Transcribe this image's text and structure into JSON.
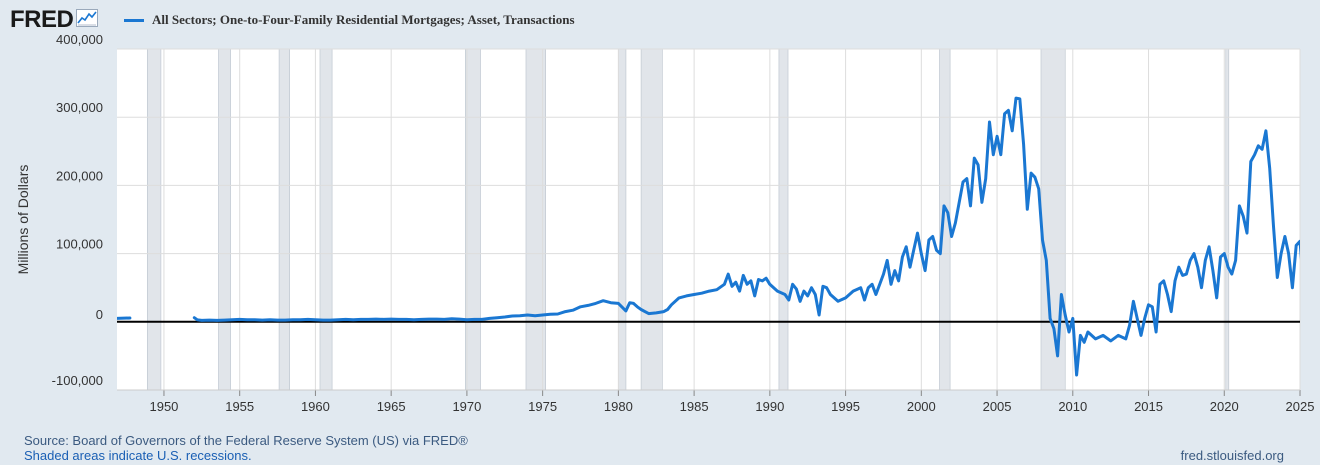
{
  "header": {
    "logo_text": "FRED",
    "logo_icon": "trend-line-icon"
  },
  "colors": {
    "background": "#e1e9f0",
    "plot_background": "#ffffff",
    "series_line": "#1a77d2",
    "recession_shade": "#e1e5ea",
    "zero_line": "#000000",
    "grid": "#dddddd"
  },
  "chart_data": {
    "type": "line",
    "title": "",
    "xlabel": "",
    "ylabel": "Millions of Dollars",
    "xlim": [
      1946.9,
      2025.0
    ],
    "ylim": [
      -100000,
      400000
    ],
    "x_ticks": [
      1950,
      1955,
      1960,
      1965,
      1970,
      1975,
      1980,
      1985,
      1990,
      1995,
      2000,
      2005,
      2010,
      2015,
      2020,
      2025
    ],
    "x_tick_labels": [
      "1950",
      "1955",
      "1960",
      "1965",
      "1970",
      "1975",
      "1980",
      "1985",
      "1990",
      "1995",
      "2000",
      "2005",
      "2010",
      "2015",
      "2020",
      "2025"
    ],
    "y_ticks": [
      -100000,
      0,
      100000,
      200000,
      300000,
      400000
    ],
    "y_tick_labels": [
      "-100,000",
      "0",
      "100,000",
      "200,000",
      "300,000",
      "400,000"
    ],
    "grid": true,
    "zero_line": true,
    "legend_placement": "top-left",
    "series": [
      {
        "name": "All Sectors; One-to-Four-Family Residential Mortgages; Asset, Transactions",
        "segments": [
          [
            [
              1946.9,
              5000
            ],
            [
              1947.75,
              5500
            ]
          ],
          [
            [
              1952.0,
              6000
            ],
            [
              1952.2,
              3000
            ],
            [
              1952.5,
              2000
            ],
            [
              1953.0,
              2500
            ],
            [
              1953.5,
              2000
            ],
            [
              1954.0,
              2500
            ],
            [
              1954.5,
              3000
            ],
            [
              1955.0,
              3500
            ],
            [
              1955.5,
              3000
            ],
            [
              1956.0,
              3000
            ],
            [
              1956.5,
              2500
            ],
            [
              1957.0,
              3000
            ],
            [
              1957.5,
              2500
            ],
            [
              1958.0,
              2500
            ],
            [
              1958.5,
              3000
            ],
            [
              1959.0,
              3000
            ],
            [
              1959.5,
              3500
            ],
            [
              1960.0,
              3000
            ],
            [
              1960.5,
              2500
            ],
            [
              1961.0,
              2500
            ],
            [
              1961.5,
              3000
            ],
            [
              1962.0,
              3500
            ],
            [
              1962.5,
              3000
            ],
            [
              1963.0,
              3500
            ],
            [
              1963.5,
              3500
            ],
            [
              1964.0,
              4000
            ],
            [
              1964.5,
              3500
            ],
            [
              1965.0,
              4000
            ],
            [
              1965.5,
              3500
            ],
            [
              1966.0,
              3500
            ],
            [
              1966.5,
              3000
            ],
            [
              1967.0,
              3500
            ],
            [
              1967.5,
              4000
            ],
            [
              1968.0,
              4000
            ],
            [
              1968.5,
              3500
            ],
            [
              1969.0,
              4500
            ],
            [
              1969.5,
              4000
            ],
            [
              1970.0,
              3000
            ],
            [
              1970.5,
              3500
            ],
            [
              1971.0,
              3500
            ],
            [
              1971.5,
              5000
            ],
            [
              1972.0,
              6000
            ],
            [
              1972.5,
              7000
            ],
            [
              1973.0,
              8500
            ],
            [
              1973.5,
              9000
            ],
            [
              1974.0,
              10000
            ],
            [
              1974.5,
              9000
            ],
            [
              1975.0,
              10000
            ],
            [
              1975.5,
              11000
            ],
            [
              1976.0,
              11500
            ],
            [
              1976.5,
              15000
            ],
            [
              1977.0,
              17000
            ],
            [
              1977.5,
              22000
            ],
            [
              1978.0,
              24000
            ],
            [
              1978.5,
              27000
            ],
            [
              1979.0,
              31000
            ],
            [
              1979.5,
              28000
            ],
            [
              1980.0,
              27000
            ],
            [
              1980.5,
              16000
            ],
            [
              1980.75,
              28000
            ],
            [
              1981.0,
              27000
            ],
            [
              1981.25,
              22000
            ],
            [
              1981.5,
              18000
            ],
            [
              1981.75,
              15000
            ],
            [
              1982.0,
              12000
            ],
            [
              1982.5,
              13000
            ],
            [
              1983.0,
              15000
            ],
            [
              1983.25,
              18000
            ],
            [
              1983.5,
              25000
            ],
            [
              1984.0,
              35000
            ],
            [
              1984.5,
              38000
            ],
            [
              1985.0,
              40000
            ],
            [
              1985.5,
              42000
            ],
            [
              1986.0,
              45000
            ],
            [
              1986.5,
              47000
            ],
            [
              1987.0,
              55000
            ],
            [
              1987.25,
              70000
            ],
            [
              1987.5,
              52000
            ],
            [
              1987.75,
              58000
            ],
            [
              1988.0,
              45000
            ],
            [
              1988.25,
              68000
            ],
            [
              1988.5,
              55000
            ],
            [
              1988.75,
              60000
            ],
            [
              1989.0,
              38000
            ],
            [
              1989.25,
              62000
            ],
            [
              1989.5,
              60000
            ],
            [
              1989.75,
              64000
            ],
            [
              1990.0,
              55000
            ],
            [
              1990.5,
              45000
            ],
            [
              1991.0,
              40000
            ],
            [
              1991.25,
              32000
            ],
            [
              1991.5,
              55000
            ],
            [
              1991.75,
              48000
            ],
            [
              1992.0,
              30000
            ],
            [
              1992.25,
              45000
            ],
            [
              1992.5,
              38000
            ],
            [
              1992.75,
              50000
            ],
            [
              1993.0,
              40000
            ],
            [
              1993.25,
              10000
            ],
            [
              1993.5,
              52000
            ],
            [
              1993.75,
              50000
            ],
            [
              1994.0,
              40000
            ],
            [
              1994.5,
              30000
            ],
            [
              1995.0,
              35000
            ],
            [
              1995.5,
              45000
            ],
            [
              1996.0,
              50000
            ],
            [
              1996.25,
              32000
            ],
            [
              1996.5,
              50000
            ],
            [
              1996.75,
              55000
            ],
            [
              1997.0,
              40000
            ],
            [
              1997.5,
              70000
            ],
            [
              1997.75,
              90000
            ],
            [
              1998.0,
              55000
            ],
            [
              1998.25,
              75000
            ],
            [
              1998.5,
              60000
            ],
            [
              1998.75,
              95000
            ],
            [
              1999.0,
              110000
            ],
            [
              1999.25,
              80000
            ],
            [
              1999.5,
              105000
            ],
            [
              1999.75,
              130000
            ],
            [
              2000.0,
              100000
            ],
            [
              2000.25,
              75000
            ],
            [
              2000.5,
              120000
            ],
            [
              2000.75,
              125000
            ],
            [
              2001.0,
              105000
            ],
            [
              2001.25,
              100000
            ],
            [
              2001.5,
              170000
            ],
            [
              2001.75,
              160000
            ],
            [
              2002.0,
              125000
            ],
            [
              2002.25,
              145000
            ],
            [
              2002.5,
              175000
            ],
            [
              2002.75,
              205000
            ],
            [
              2003.0,
              210000
            ],
            [
              2003.25,
              170000
            ],
            [
              2003.5,
              240000
            ],
            [
              2003.75,
              230000
            ],
            [
              2004.0,
              175000
            ],
            [
              2004.25,
              210000
            ],
            [
              2004.5,
              293000
            ],
            [
              2004.75,
              245000
            ],
            [
              2005.0,
              272000
            ],
            [
              2005.25,
              245000
            ],
            [
              2005.5,
              305000
            ],
            [
              2005.75,
              310000
            ],
            [
              2006.0,
              280000
            ],
            [
              2006.25,
              328000
            ],
            [
              2006.5,
              327000
            ],
            [
              2006.75,
              260000
            ],
            [
              2007.0,
              165000
            ],
            [
              2007.25,
              218000
            ],
            [
              2007.5,
              212000
            ],
            [
              2007.75,
              195000
            ],
            [
              2008.0,
              120000
            ],
            [
              2008.25,
              90000
            ],
            [
              2008.5,
              5000
            ],
            [
              2008.75,
              -10000
            ],
            [
              2009.0,
              -50000
            ],
            [
              2009.25,
              40000
            ],
            [
              2009.5,
              10000
            ],
            [
              2009.75,
              -15000
            ],
            [
              2010.0,
              5000
            ],
            [
              2010.25,
              -78000
            ],
            [
              2010.5,
              -20000
            ],
            [
              2010.75,
              -30000
            ],
            [
              2011.0,
              -15000
            ],
            [
              2011.5,
              -25000
            ],
            [
              2012.0,
              -20000
            ],
            [
              2012.5,
              -28000
            ],
            [
              2013.0,
              -20000
            ],
            [
              2013.5,
              -25000
            ],
            [
              2013.75,
              -5000
            ],
            [
              2014.0,
              30000
            ],
            [
              2014.25,
              5000
            ],
            [
              2014.5,
              -20000
            ],
            [
              2014.75,
              5000
            ],
            [
              2015.0,
              25000
            ],
            [
              2015.25,
              22000
            ],
            [
              2015.5,
              -15000
            ],
            [
              2015.75,
              55000
            ],
            [
              2016.0,
              60000
            ],
            [
              2016.25,
              40000
            ],
            [
              2016.5,
              15000
            ],
            [
              2016.75,
              60000
            ],
            [
              2017.0,
              80000
            ],
            [
              2017.25,
              68000
            ],
            [
              2017.5,
              70000
            ],
            [
              2017.75,
              90000
            ],
            [
              2018.0,
              100000
            ],
            [
              2018.25,
              80000
            ],
            [
              2018.5,
              50000
            ],
            [
              2018.75,
              90000
            ],
            [
              2019.0,
              110000
            ],
            [
              2019.25,
              75000
            ],
            [
              2019.5,
              35000
            ],
            [
              2019.75,
              95000
            ],
            [
              2020.0,
              100000
            ],
            [
              2020.25,
              80000
            ],
            [
              2020.5,
              70000
            ],
            [
              2020.75,
              90000
            ],
            [
              2021.0,
              170000
            ],
            [
              2021.25,
              155000
            ],
            [
              2021.5,
              130000
            ],
            [
              2021.75,
              235000
            ],
            [
              2022.0,
              245000
            ],
            [
              2022.25,
              258000
            ],
            [
              2022.5,
              253000
            ],
            [
              2022.75,
              280000
            ],
            [
              2023.0,
              225000
            ],
            [
              2023.25,
              140000
            ],
            [
              2023.5,
              65000
            ],
            [
              2023.75,
              100000
            ],
            [
              2024.0,
              125000
            ],
            [
              2024.25,
              100000
            ],
            [
              2024.5,
              50000
            ],
            [
              2024.75,
              112000
            ],
            [
              2025.0,
              118000
            ],
            [
              2025.25,
              50000
            ]
          ]
        ]
      }
    ],
    "recessions": [
      [
        1948.9,
        1949.8
      ],
      [
        1953.6,
        1954.4
      ],
      [
        1957.6,
        1958.3
      ],
      [
        1960.3,
        1961.1
      ],
      [
        1969.9,
        1970.9
      ],
      [
        1973.9,
        1975.2
      ],
      [
        1980.0,
        1980.5
      ],
      [
        1981.5,
        1982.9
      ],
      [
        1990.6,
        1991.2
      ],
      [
        2001.2,
        2001.9
      ],
      [
        2007.9,
        2009.5
      ],
      [
        2020.1,
        2020.3
      ]
    ]
  },
  "footer": {
    "source": "Source: Board of Governors of the Federal Reserve System (US) via FRED®",
    "note": "Shaded areas indicate U.S. recessions.",
    "site": "fred.stlouisfed.org"
  }
}
